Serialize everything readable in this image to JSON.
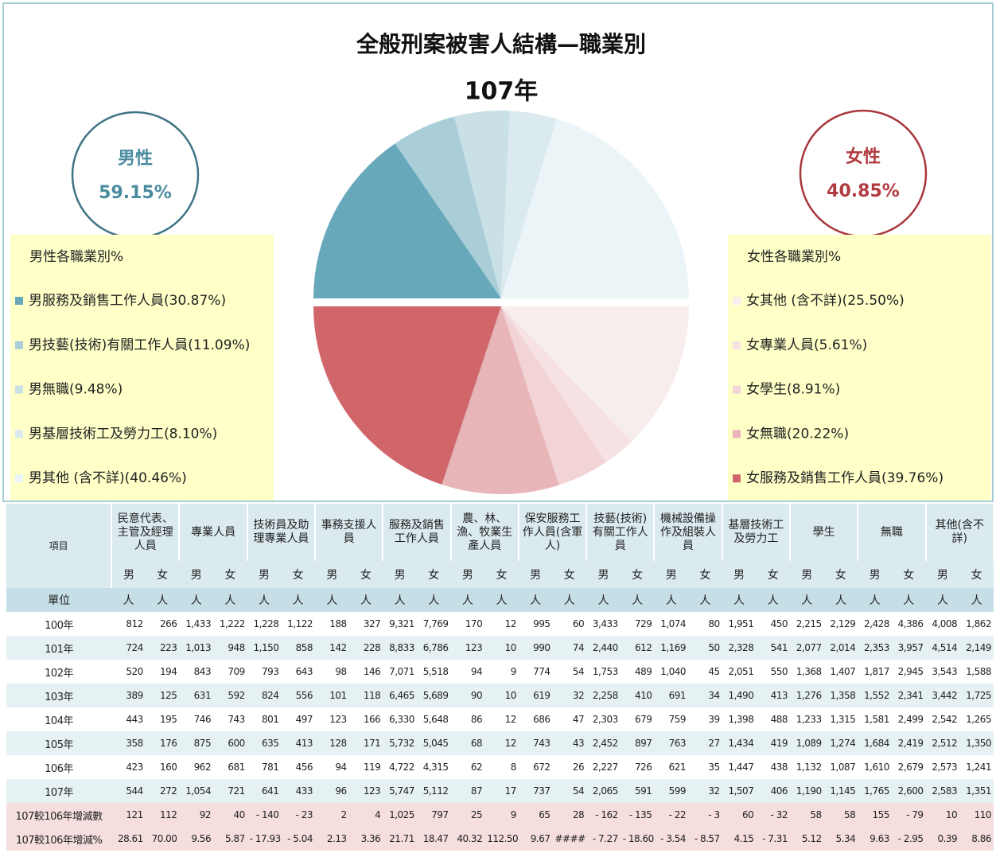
{
  "chart_data": {
    "type": "pie",
    "title": "全般刑案被害人結構—職業別",
    "subtitle": "107年",
    "groups": [
      {
        "name": "男性",
        "share": 59.15,
        "share_label": "59.15%",
        "legend_title": "男性各職業別%",
        "categories": [
          "男服務及銷售工作人員(30.87%)",
          "男技藝(技術)有關工作人員(11.09%)",
          "男無職(9.48%)",
          "男基層技術工及勞力工(8.10%)",
          "男其他 (含不詳)(40.46%)"
        ],
        "values": [
          30.87,
          11.09,
          9.48,
          8.1,
          40.46
        ],
        "colors": [
          "#67a8bb",
          "#a9ced8",
          "#c9e0e7",
          "#dbeaef",
          "#ebf4f7"
        ]
      },
      {
        "name": "女性",
        "share": 40.85,
        "share_label": "40.85%",
        "legend_title": "女性各職業別%",
        "categories": [
          "女其他 (含不詳)(25.50%)",
          "女專業人員(5.61%)",
          "女學生(8.91%)",
          "女無職(20.22%)",
          "女服務及銷售工作人員(39.76%)"
        ],
        "values": [
          25.5,
          5.61,
          8.91,
          20.22,
          39.76
        ],
        "colors": [
          "#f8eded",
          "#f6e2e3",
          "#f2d4d6",
          "#e8b6b8",
          "#d0666a"
        ]
      }
    ]
  },
  "table": {
    "item_header": "項目",
    "columns": [
      "民意代表、主管及經理人員",
      "專業人員",
      "技術員及助理專業人員",
      "事務支援人員",
      "服務及銷售工作人員",
      "農、林、漁、牧業生產人員",
      "保安服務工作人員(含軍人)",
      "技藝(技術)有關工作人員",
      "機械設備操作及組裝人員",
      "基層技術工及勞力工",
      "學生",
      "無職",
      "其他(含不詳)"
    ],
    "sexes": [
      "男",
      "女"
    ],
    "unit_label": "單位",
    "unit": "人",
    "rows": [
      {
        "label": "100年",
        "cells": [
          "812",
          "266",
          "1,433",
          "1,222",
          "1,228",
          "1,122",
          "188",
          "327",
          "9,321",
          "7,769",
          "170",
          "12",
          "995",
          "60",
          "3,433",
          "729",
          "1,074",
          "80",
          "1,951",
          "450",
          "2,215",
          "2,129",
          "2,428",
          "4,386",
          "4,008",
          "1,862"
        ]
      },
      {
        "label": "101年",
        "cells": [
          "724",
          "223",
          "1,013",
          "948",
          "1,150",
          "858",
          "142",
          "228",
          "8,833",
          "6,786",
          "123",
          "10",
          "990",
          "74",
          "2,440",
          "612",
          "1,169",
          "50",
          "2,328",
          "541",
          "2,077",
          "2,014",
          "2,353",
          "3,957",
          "4,514",
          "2,149"
        ]
      },
      {
        "label": "102年",
        "cells": [
          "520",
          "194",
          "843",
          "709",
          "793",
          "643",
          "98",
          "146",
          "7,071",
          "5,518",
          "94",
          "9",
          "774",
          "54",
          "1,753",
          "489",
          "1,040",
          "45",
          "2,051",
          "550",
          "1,368",
          "1,407",
          "1,817",
          "2,945",
          "3,543",
          "1,588"
        ]
      },
      {
        "label": "103年",
        "cells": [
          "389",
          "125",
          "631",
          "592",
          "824",
          "556",
          "101",
          "118",
          "6,465",
          "5,689",
          "90",
          "10",
          "619",
          "32",
          "2,258",
          "410",
          "691",
          "34",
          "1,490",
          "413",
          "1,276",
          "1,358",
          "1,552",
          "2,341",
          "3,442",
          "1,725"
        ]
      },
      {
        "label": "104年",
        "cells": [
          "443",
          "195",
          "746",
          "743",
          "801",
          "497",
          "123",
          "166",
          "6,330",
          "5,648",
          "86",
          "12",
          "686",
          "47",
          "2,303",
          "679",
          "759",
          "39",
          "1,398",
          "488",
          "1,233",
          "1,315",
          "1,581",
          "2,499",
          "2,542",
          "1,265"
        ]
      },
      {
        "label": "105年",
        "cells": [
          "358",
          "176",
          "875",
          "600",
          "635",
          "413",
          "128",
          "171",
          "5,732",
          "5,045",
          "68",
          "12",
          "743",
          "43",
          "2,452",
          "897",
          "763",
          "27",
          "1,434",
          "419",
          "1,089",
          "1,274",
          "1,684",
          "2,419",
          "2,512",
          "1,350"
        ]
      },
      {
        "label": "106年",
        "cells": [
          "423",
          "160",
          "962",
          "681",
          "781",
          "456",
          "94",
          "119",
          "4,722",
          "4,315",
          "62",
          "8",
          "672",
          "26",
          "2,227",
          "726",
          "621",
          "35",
          "1,447",
          "438",
          "1,132",
          "1,087",
          "1,610",
          "2,679",
          "2,573",
          "1,241"
        ]
      },
      {
        "label": "107年",
        "cells": [
          "544",
          "272",
          "1,054",
          "721",
          "641",
          "433",
          "96",
          "123",
          "5,747",
          "5,112",
          "87",
          "17",
          "737",
          "54",
          "2,065",
          "591",
          "599",
          "32",
          "1,507",
          "406",
          "1,190",
          "1,145",
          "1,765",
          "2,600",
          "2,583",
          "1,351"
        ]
      },
      {
        "label": "107較106年增減數",
        "cells": [
          "121",
          "112",
          "92",
          "40",
          "- 140",
          "- 23",
          "2",
          "4",
          "1,025",
          "797",
          "25",
          "9",
          "65",
          "28",
          "- 162",
          "- 135",
          "- 22",
          "- 3",
          "60",
          "- 32",
          "58",
          "58",
          "155",
          "- 79",
          "10",
          "110"
        ]
      },
      {
        "label": "107較106年增減%",
        "cells": [
          "28.61",
          "70.00",
          "9.56",
          "5.87",
          "- 17.93",
          "- 5.04",
          "2.13",
          "3.36",
          "21.71",
          "18.47",
          "40.32",
          "112.50",
          "9.67",
          "####",
          "- 7.27",
          "- 18.60",
          "- 3.54",
          "- 8.57",
          "4.15",
          "- 7.31",
          "5.12",
          "5.34",
          "9.63",
          "- 2.95",
          "0.39",
          "8.86"
        ]
      }
    ]
  }
}
